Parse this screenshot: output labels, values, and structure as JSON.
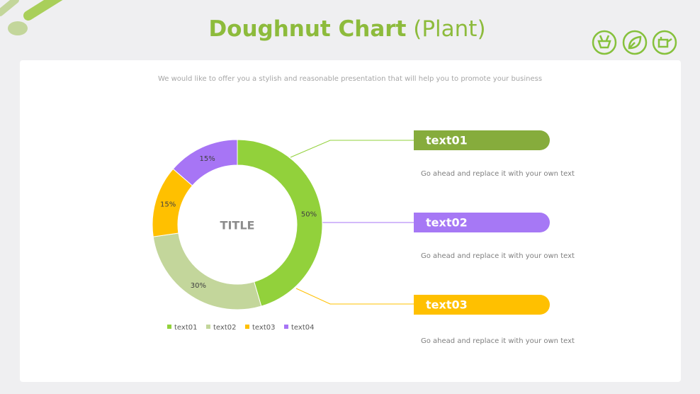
{
  "header": {
    "title_main": "Doughnut Chart",
    "title_sub": "(Plant)",
    "subtitle": "We would like to offer you a stylish and reasonable presentation that will help you to promote your business"
  },
  "chart_data": {
    "type": "doughnut",
    "center_label": "TITLE",
    "categories": [
      "text01",
      "text02",
      "text03",
      "text04"
    ],
    "values": [
      50,
      30,
      15,
      15
    ],
    "value_labels": [
      "50%",
      "30%",
      "15%",
      "15%"
    ],
    "colors": [
      "#92d13b",
      "#c3d69b",
      "#ffc000",
      "#a775f5"
    ],
    "legend": "bottom"
  },
  "callouts": [
    {
      "label": "text01",
      "description": "Go ahead and replace it with your own text",
      "color": "#86ac3c"
    },
    {
      "label": "text02",
      "description": "Go ahead and replace it with your own text",
      "color": "#a678f5"
    },
    {
      "label": "text03",
      "description": "Go ahead and replace it with your own text",
      "color": "#ffc000"
    }
  ]
}
